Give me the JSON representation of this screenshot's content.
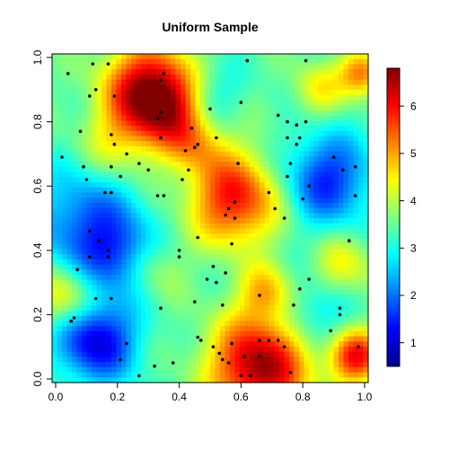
{
  "chart_data": {
    "type": "heatmap",
    "title": "Uniform Sample",
    "xlabel": "",
    "ylabel": "",
    "xlim": [
      0,
      1
    ],
    "ylim": [
      0,
      1
    ],
    "x_ticks": [
      "0.0",
      "0.2",
      "0.4",
      "0.6",
      "0.8",
      "1.0"
    ],
    "y_ticks": [
      "0.0",
      "0.2",
      "0.4",
      "0.6",
      "0.8",
      "1.0"
    ],
    "colorbar": {
      "range": [
        0.5,
        6.8
      ],
      "ticks": [
        "1",
        "2",
        "3",
        "4",
        "5",
        "6"
      ],
      "colors": [
        "#00008F",
        "#0000FF",
        "#0080FF",
        "#00FFFF",
        "#80FF80",
        "#FFFF00",
        "#FF8000",
        "#FF0000",
        "#800000"
      ]
    },
    "grid": false,
    "background_level": 3.4,
    "hotspots": [
      {
        "x": 0.3,
        "y": 0.9,
        "r": 0.1,
        "v": 3.0
      },
      {
        "x": 0.36,
        "y": 0.84,
        "r": 0.08,
        "v": 1.5
      },
      {
        "x": 0.58,
        "y": 0.56,
        "r": 0.1,
        "v": 2.6
      },
      {
        "x": 0.66,
        "y": 0.04,
        "r": 0.11,
        "v": 3.3
      },
      {
        "x": 0.97,
        "y": 0.07,
        "r": 0.06,
        "v": 2.6
      },
      {
        "x": 0.99,
        "y": 0.95,
        "r": 0.05,
        "v": 2.0
      },
      {
        "x": 0.13,
        "y": 0.12,
        "r": 0.09,
        "v": -2.4
      },
      {
        "x": 0.1,
        "y": 0.48,
        "r": 0.12,
        "v": -1.6
      },
      {
        "x": 0.22,
        "y": 0.38,
        "r": 0.08,
        "v": -1.4
      },
      {
        "x": 0.88,
        "y": 0.62,
        "r": 0.1,
        "v": -1.9
      },
      {
        "x": 0.45,
        "y": 0.73,
        "r": 0.07,
        "v": 1.2
      },
      {
        "x": 0.03,
        "y": 0.25,
        "r": 0.07,
        "v": 1.4
      },
      {
        "x": 0.3,
        "y": 0.35,
        "r": 0.07,
        "v": 0.9
      },
      {
        "x": 0.68,
        "y": 0.27,
        "r": 0.06,
        "v": 1.3
      },
      {
        "x": 0.93,
        "y": 0.35,
        "r": 0.07,
        "v": 1.0
      },
      {
        "x": 0.84,
        "y": 0.2,
        "r": 0.08,
        "v": -0.9
      },
      {
        "x": 0.2,
        "y": 0.73,
        "r": 0.08,
        "v": 0.9
      },
      {
        "x": 0.85,
        "y": 0.9,
        "r": 0.06,
        "v": 1.0
      },
      {
        "x": 0.5,
        "y": 0.88,
        "r": 0.07,
        "v": -0.7
      }
    ],
    "points": [
      [
        0.04,
        0.95
      ],
      [
        0.12,
        0.98
      ],
      [
        0.17,
        0.98
      ],
      [
        0.11,
        0.88
      ],
      [
        0.13,
        0.9
      ],
      [
        0.19,
        0.88
      ],
      [
        0.35,
        0.95
      ],
      [
        0.34,
        0.93
      ],
      [
        0.34,
        0.83
      ],
      [
        0.33,
        0.81
      ],
      [
        0.62,
        0.99
      ],
      [
        0.81,
        0.99
      ],
      [
        0.5,
        0.84
      ],
      [
        0.6,
        0.86
      ],
      [
        0.72,
        0.82
      ],
      [
        0.75,
        0.8
      ],
      [
        0.78,
        0.79
      ],
      [
        0.81,
        0.8
      ],
      [
        0.08,
        0.77
      ],
      [
        0.18,
        0.76
      ],
      [
        0.19,
        0.73
      ],
      [
        0.23,
        0.7
      ],
      [
        0.34,
        0.75
      ],
      [
        0.44,
        0.78
      ],
      [
        0.52,
        0.75
      ],
      [
        0.45,
        0.72
      ],
      [
        0.46,
        0.73
      ],
      [
        0.42,
        0.71
      ],
      [
        0.75,
        0.75
      ],
      [
        0.79,
        0.75
      ],
      [
        0.78,
        0.73
      ],
      [
        0.02,
        0.69
      ],
      [
        0.09,
        0.66
      ],
      [
        0.1,
        0.62
      ],
      [
        0.18,
        0.66
      ],
      [
        0.27,
        0.67
      ],
      [
        0.3,
        0.65
      ],
      [
        0.41,
        0.62
      ],
      [
        0.43,
        0.65
      ],
      [
        0.59,
        0.67
      ],
      [
        0.76,
        0.67
      ],
      [
        0.9,
        0.69
      ],
      [
        0.93,
        0.65
      ],
      [
        0.97,
        0.66
      ],
      [
        0.75,
        0.63
      ],
      [
        0.82,
        0.6
      ],
      [
        0.16,
        0.58
      ],
      [
        0.18,
        0.58
      ],
      [
        0.21,
        0.63
      ],
      [
        0.33,
        0.57
      ],
      [
        0.35,
        0.57
      ],
      [
        0.69,
        0.58
      ],
      [
        0.58,
        0.55
      ],
      [
        0.56,
        0.53
      ],
      [
        0.58,
        0.5
      ],
      [
        0.55,
        0.51
      ],
      [
        0.71,
        0.53
      ],
      [
        0.74,
        0.5
      ],
      [
        0.8,
        0.56
      ],
      [
        0.97,
        0.57
      ],
      [
        0.11,
        0.46
      ],
      [
        0.11,
        0.38
      ],
      [
        0.14,
        0.43
      ],
      [
        0.17,
        0.4
      ],
      [
        0.17,
        0.38
      ],
      [
        0.57,
        0.42
      ],
      [
        0.46,
        0.44
      ],
      [
        0.4,
        0.4
      ],
      [
        0.4,
        0.38
      ],
      [
        0.95,
        0.43
      ],
      [
        0.51,
        0.35
      ],
      [
        0.55,
        0.33
      ],
      [
        0.49,
        0.31
      ],
      [
        0.52,
        0.3
      ],
      [
        0.07,
        0.34
      ],
      [
        0.13,
        0.25
      ],
      [
        0.18,
        0.25
      ],
      [
        0.34,
        0.22
      ],
      [
        0.45,
        0.24
      ],
      [
        0.54,
        0.23
      ],
      [
        0.66,
        0.26
      ],
      [
        0.77,
        0.23
      ],
      [
        0.79,
        0.28
      ],
      [
        0.82,
        0.31
      ],
      [
        0.92,
        0.22
      ],
      [
        0.92,
        0.2
      ],
      [
        0.05,
        0.18
      ],
      [
        0.06,
        0.19
      ],
      [
        0.23,
        0.11
      ],
      [
        0.46,
        0.13
      ],
      [
        0.47,
        0.12
      ],
      [
        0.51,
        0.1
      ],
      [
        0.57,
        0.11
      ],
      [
        0.66,
        0.12
      ],
      [
        0.69,
        0.12
      ],
      [
        0.72,
        0.12
      ],
      [
        0.74,
        0.1
      ],
      [
        0.89,
        0.15
      ],
      [
        0.98,
        0.1
      ],
      [
        0.21,
        0.06
      ],
      [
        0.53,
        0.08
      ],
      [
        0.54,
        0.06
      ],
      [
        0.56,
        0.05
      ],
      [
        0.61,
        0.07
      ],
      [
        0.66,
        0.07
      ],
      [
        0.32,
        0.04
      ],
      [
        0.38,
        0.05
      ],
      [
        0.27,
        0.01
      ],
      [
        0.6,
        0.01
      ],
      [
        0.63,
        0.01
      ],
      [
        0.76,
        0.02
      ]
    ]
  }
}
